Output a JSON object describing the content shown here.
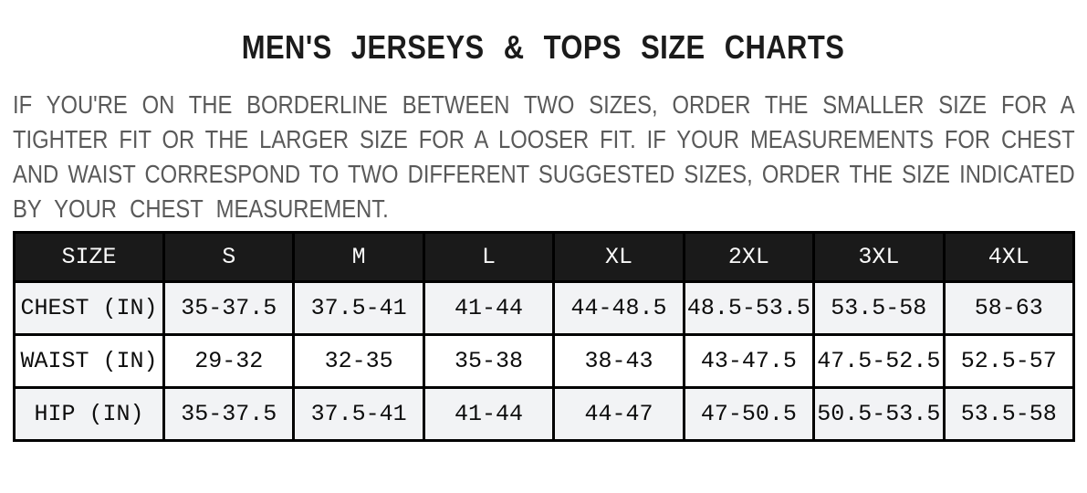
{
  "page": {
    "title": "MEN'S JERSEYS & TOPS SIZE CHARTS",
    "intro_lines": [
      "IF YOU'RE ON THE BORDERLINE BETWEEN TWO SIZES, ORDER THE SMALLER SIZE FOR A",
      "TIGHTER FIT OR THE LARGER SIZE FOR A LOOSER FIT. IF YOUR MEASUREMENTS FOR CHEST",
      "AND WAIST CORRESPOND TO TWO DIFFERENT SUGGESTED SIZES, ORDER THE SIZE INDICATED",
      "BY YOUR CHEST MEASUREMENT."
    ]
  },
  "size_chart": {
    "columns": [
      "SIZE",
      "S",
      "M",
      "L",
      "XL",
      "2XL",
      "3XL",
      "4XL"
    ],
    "rows": [
      {
        "label": "CHEST (IN)",
        "values": [
          "35-37.5",
          "37.5-41",
          "41-44",
          "44-48.5",
          "48.5-53.5",
          "53.5-58",
          "58-63"
        ]
      },
      {
        "label": "WAIST (IN)",
        "values": [
          "29-32",
          "32-35",
          "35-38",
          "38-43",
          "43-47.5",
          "47.5-52.5",
          "52.5-57"
        ]
      },
      {
        "label": "HIP (IN)",
        "values": [
          "35-37.5",
          "37.5-41",
          "41-44",
          "44-47",
          "47-50.5",
          "50.5-53.5",
          "53.5-58"
        ]
      }
    ]
  },
  "colors": {
    "header_bg": "#1a1a1a",
    "header_text": "#fafafa",
    "stripe_bg": "#f2f3f5",
    "table_border": "#000000",
    "title_text": "#1b1b1b",
    "body_text": "#595959"
  }
}
